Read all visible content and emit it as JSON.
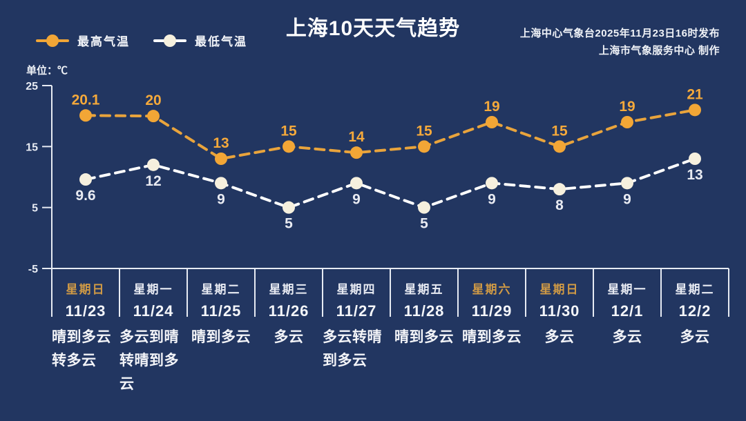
{
  "page": {
    "background_color": "#223661"
  },
  "header": {
    "title": "上海10天天气趋势",
    "source_line1": "上海中心气象台2025年11月23日16时发布",
    "source_line2": "上海市气象服务中心 制作"
  },
  "legend": {
    "high": {
      "label": "最高气温",
      "color": "#f2a636"
    },
    "low": {
      "label": "最低气温",
      "color": "#f6f0de",
      "line_color": "#ffffff"
    }
  },
  "unit_label": "单位：℃",
  "axis": {
    "color": "#e7ebf3",
    "tick_label_color": "#e7ebf3"
  },
  "chart_data": {
    "type": "line",
    "title": "上海10天天气趋势",
    "categories": [
      "11/23",
      "11/24",
      "11/25",
      "11/26",
      "11/27",
      "11/28",
      "11/29",
      "11/30",
      "12/1",
      "12/2"
    ],
    "series": [
      {
        "name": "最高气温",
        "values": [
          20.1,
          20,
          13,
          15,
          14,
          15,
          19,
          15,
          19,
          21
        ],
        "marker_color": "#f2a636",
        "line_color": "#e9a43c",
        "label_color": "#f5a93b",
        "line_style": "dashed",
        "label_position": "above"
      },
      {
        "name": "最低气温",
        "values": [
          9.6,
          12,
          9,
          5,
          9,
          5,
          9,
          8,
          9,
          13
        ],
        "marker_color": "#f6f0de",
        "line_color": "#ffffff",
        "label_color": "#e9ebf2",
        "line_style": "dashed",
        "label_position": "below"
      }
    ],
    "ylim": [
      -5,
      25
    ],
    "yticks": [
      25,
      15,
      5,
      -5
    ],
    "ylabel": "单位：℃",
    "grid": false,
    "legend_position": "top-left"
  },
  "days": [
    {
      "weekday": "星期日",
      "date": "11/23",
      "condition": "晴到多云转多云",
      "weekend": true
    },
    {
      "weekday": "星期一",
      "date": "11/24",
      "condition": "多云到晴转晴到多云",
      "weekend": false
    },
    {
      "weekday": "星期二",
      "date": "11/25",
      "condition": "晴到多云",
      "weekend": false
    },
    {
      "weekday": "星期三",
      "date": "11/26",
      "condition": "多云",
      "weekend": false
    },
    {
      "weekday": "星期四",
      "date": "11/27",
      "condition": "多云转晴到多云",
      "weekend": false
    },
    {
      "weekday": "星期五",
      "date": "11/28",
      "condition": "晴到多云",
      "weekend": false
    },
    {
      "weekday": "星期六",
      "date": "11/29",
      "condition": "晴到多云",
      "weekend": true
    },
    {
      "weekday": "星期日",
      "date": "11/30",
      "condition": "多云",
      "weekend": true
    },
    {
      "weekday": "星期一",
      "date": "12/1",
      "condition": "多云",
      "weekend": false
    },
    {
      "weekday": "星期二",
      "date": "12/2",
      "condition": "多云",
      "weekend": false
    }
  ],
  "colors": {
    "weekend_weekday": "#d09a45",
    "weekday_text": "#e8ebf3",
    "date_text": "#f4f6fa",
    "condition_text": "#f3f4f8"
  }
}
